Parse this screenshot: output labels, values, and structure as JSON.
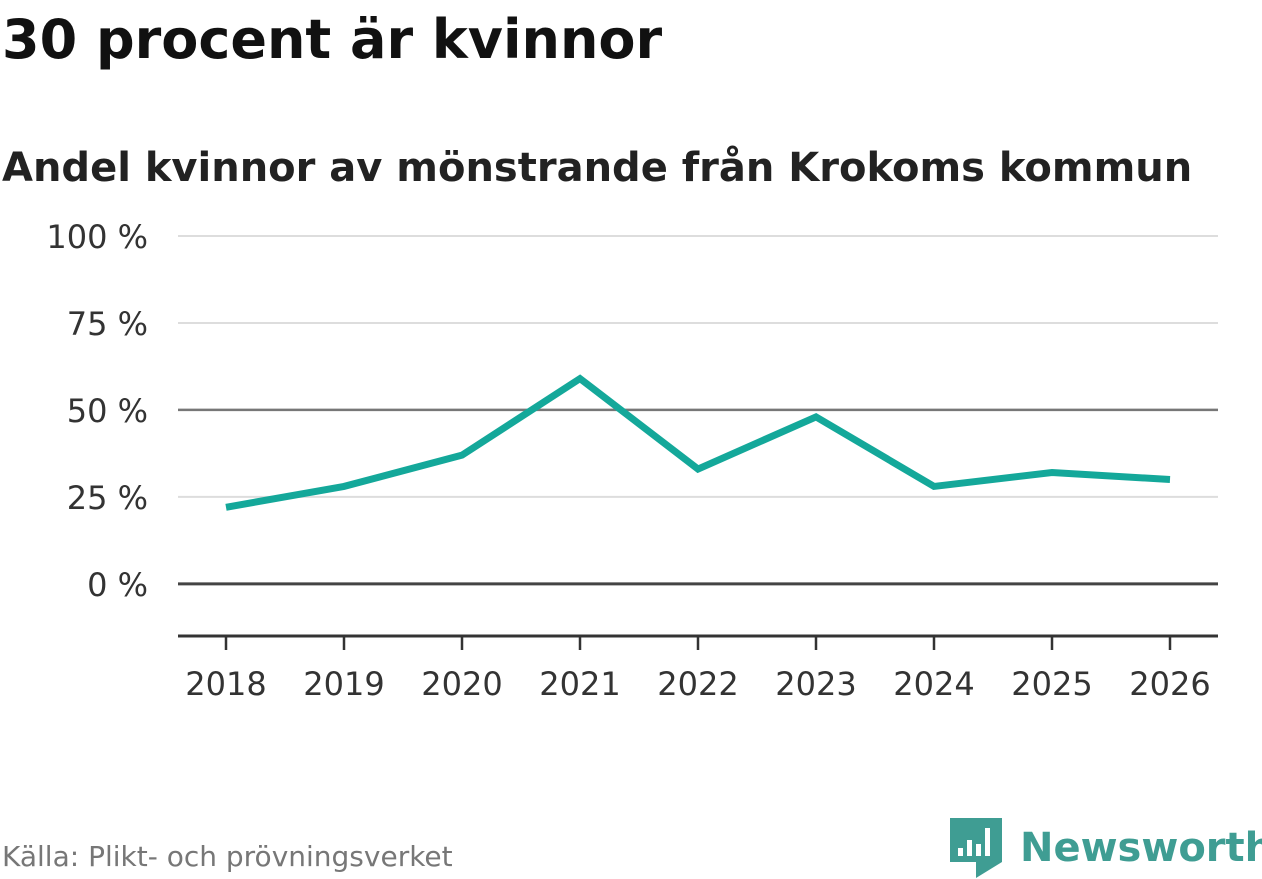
{
  "title": "30 procent är kvinnor",
  "subtitle": "Andel kvinnor av mönstrande från Krokoms kommun",
  "source": "Källa: Plikt- och prövningsverket",
  "brand": {
    "name": "Newsworthy",
    "color": "#3f9d93",
    "icon": "newsworthy-logo-icon"
  },
  "chart_data": {
    "type": "line",
    "title": "30 procent är kvinnor",
    "subtitle": "Andel kvinnor av mönstrande från Krokoms kommun",
    "categories": [
      "2018",
      "2019",
      "2020",
      "2021",
      "2022",
      "2023",
      "2024",
      "2025",
      "2026"
    ],
    "series": [
      {
        "name": "Andel kvinnor",
        "color": "#14a89a",
        "values": [
          22,
          28,
          37,
          59,
          33,
          48,
          28,
          32,
          30
        ]
      }
    ],
    "ylim": [
      -15,
      100
    ],
    "yticks": [
      0,
      25,
      50,
      75,
      100
    ],
    "ytick_labels": [
      "0 %",
      "25 %",
      "50 %",
      "75 %",
      "100 %"
    ],
    "reference_line": 50,
    "xlabel": "",
    "ylabel": "",
    "grid": true
  }
}
